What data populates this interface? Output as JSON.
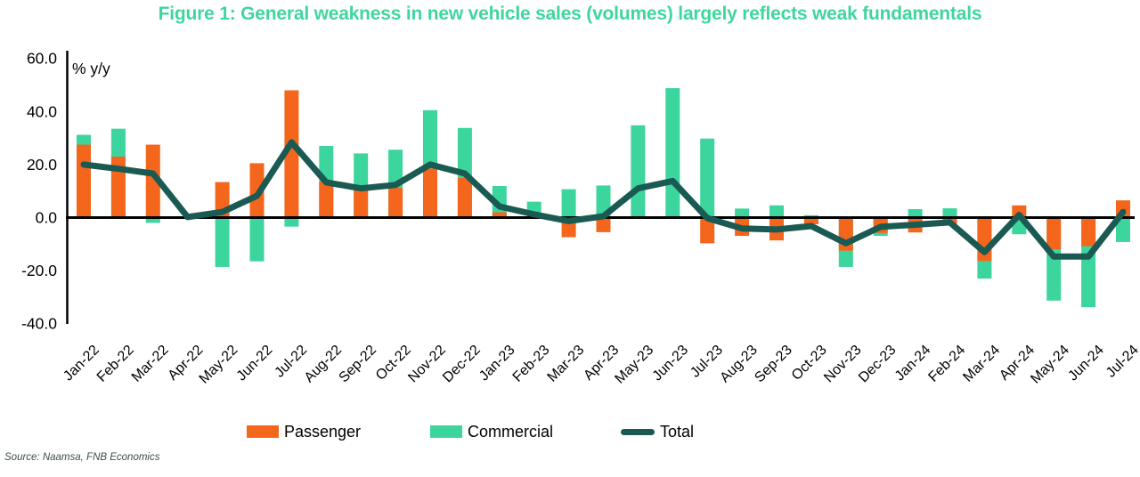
{
  "title": "Figure 1: General weakness in new vehicle sales (volumes) largely reflects weak fundamentals",
  "source": "Source: Naamsa, FNB Economics",
  "y_axis_unit_label": "% y/y",
  "colors": {
    "title_green": "#3fd69e",
    "passenger_orange": "#f5661d",
    "commercial_green": "#3cd59d",
    "total_teal": "#1a5a52",
    "axis_black": "#000000",
    "source_text": "#3c4e4e"
  },
  "legend": [
    {
      "label": "Passenger",
      "color": "#f5661d",
      "type": "bar"
    },
    {
      "label": "Commercial",
      "color": "#3cd59d",
      "type": "bar"
    },
    {
      "label": "Total",
      "color": "#1a5a52",
      "type": "line"
    }
  ],
  "chart_data": {
    "type": "bar",
    "subtype": "overlapped bars with line overlay",
    "title": "Figure 1: General weakness in new vehicle sales (volumes) largely reflects weak fundamentals",
    "xlabel": "",
    "ylabel": "% y/y",
    "ylim": [
      -40,
      60
    ],
    "yticks": [
      60,
      40,
      20,
      0,
      -20,
      -40
    ],
    "grid": false,
    "legend_position": "bottom",
    "categories": [
      "Jan-22",
      "Feb-22",
      "Mar-22",
      "Apr-22",
      "May-22",
      "Jun-22",
      "Jul-22",
      "Aug-22",
      "Sep-22",
      "Oct-22",
      "Nov-22",
      "Dec-22",
      "Jan-23",
      "Feb-23",
      "Mar-23",
      "Apr-23",
      "May-23",
      "Jun-23",
      "Jul-23",
      "Aug-23",
      "Sep-23",
      "Oct-23",
      "Nov-23",
      "Dec-23",
      "Jan-24",
      "Feb-24",
      "Mar-24",
      "Apr-24",
      "May-24",
      "Jun-24",
      "Jul-24"
    ],
    "series": [
      {
        "name": "Passenger",
        "type": "bar",
        "color": "#f5661d",
        "values": [
          27.5,
          23,
          27.5,
          0,
          13.4,
          20.5,
          48,
          13.6,
          11,
          11.2,
          18.5,
          15,
          2,
          0,
          -7.4,
          -5.5,
          0,
          0,
          -9.7,
          -6.9,
          -8.6,
          -2.5,
          -12.5,
          -5.8,
          -5.6,
          -3,
          -16.4,
          4.6,
          -12,
          -10.8,
          6.5
        ]
      },
      {
        "name": "Commercial",
        "type": "bar",
        "color": "#3cd59d",
        "values": [
          31.2,
          33.5,
          -2,
          0,
          -18.6,
          -16.5,
          -3.4,
          27,
          24.2,
          25.6,
          40.5,
          33.8,
          11.9,
          6,
          10.7,
          12.1,
          34.8,
          48.8,
          29.8,
          3.4,
          4.6,
          0.9,
          -18.6,
          -6.9,
          3.2,
          3.5,
          -23,
          -6.3,
          -31.3,
          -33.8,
          -9.2
        ]
      },
      {
        "name": "Total",
        "type": "line",
        "color": "#1a5a52",
        "values": [
          20,
          18.4,
          16.6,
          0.2,
          2.1,
          8.2,
          28.4,
          13.3,
          11,
          12.3,
          20,
          16.6,
          4.2,
          1.2,
          -1.3,
          0.5,
          11,
          13.8,
          -0.2,
          -4.1,
          -4.5,
          -3.2,
          -9.7,
          -3.5,
          -2.7,
          -1.8,
          -13,
          1,
          -14.7,
          -14.7,
          2.1
        ]
      }
    ]
  }
}
